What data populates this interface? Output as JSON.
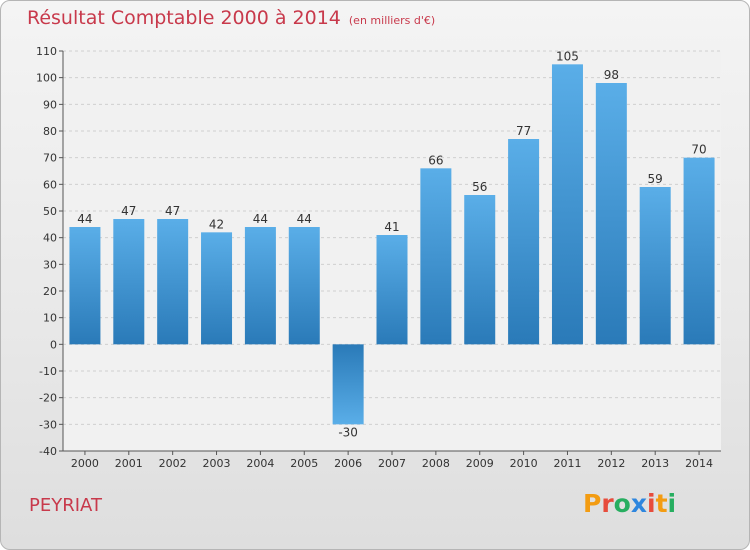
{
  "header": {
    "title": "Résultat Comptable 2000 à 2014",
    "subtitle": "(en milliers d'€)"
  },
  "footer": {
    "commune": "PEYRIAT",
    "logo_letters": [
      "P",
      "r",
      "o",
      "x",
      "i",
      "t",
      "i"
    ]
  },
  "colors": {
    "title": "#c8394b",
    "bar_top": "#5aaee8",
    "bar_bottom": "#2a7ab8",
    "logo": [
      "#f39c12",
      "#e74c3c",
      "#27ae60",
      "#2e86de",
      "#e74c3c",
      "#f39c12",
      "#27ae60"
    ]
  },
  "chart_data": {
    "type": "bar",
    "title": "Résultat Comptable 2000 à 2014",
    "unit": "(en milliers d'€)",
    "categories": [
      "2000",
      "2001",
      "2002",
      "2003",
      "2004",
      "2005",
      "2006",
      "2007",
      "2008",
      "2009",
      "2010",
      "2011",
      "2012",
      "2013",
      "2014"
    ],
    "values": [
      44,
      47,
      47,
      42,
      44,
      44,
      -30,
      41,
      66,
      56,
      77,
      105,
      98,
      59,
      70
    ],
    "ylim": [
      -40,
      110
    ],
    "yticks": [
      -40,
      -30,
      -20,
      -10,
      0,
      10,
      20,
      30,
      40,
      50,
      60,
      70,
      80,
      90,
      100,
      110
    ],
    "grid": true,
    "xlabel": "",
    "ylabel": ""
  }
}
